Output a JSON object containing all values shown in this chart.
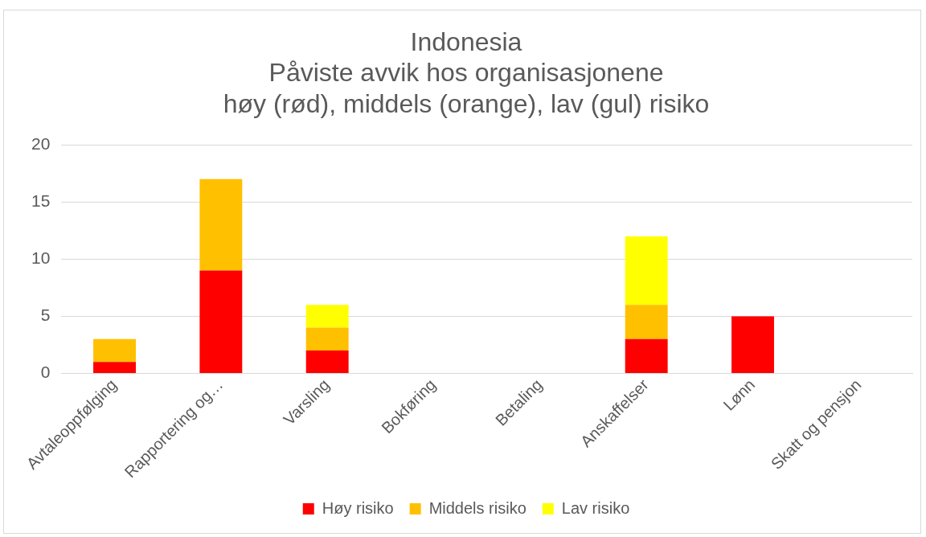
{
  "chart_data": {
    "type": "bar",
    "title": "Indonesia\nPåviste avvik hos organisasjonene\nhøy (rød), middels (orange), lav (gul) risiko",
    "categories": [
      "Avtaleoppfølging",
      "Rapportering og…",
      "Varsling",
      "Bokføring",
      "Betaling",
      "Anskaffelser",
      "Lønn",
      "Skatt og pensjon"
    ],
    "stacked": true,
    "series": [
      {
        "name": "Høy risiko",
        "color": "#ff0000",
        "values": [
          1,
          9,
          2,
          0,
          0,
          3,
          5,
          0
        ]
      },
      {
        "name": "Middels risiko",
        "color": "#ffc000",
        "values": [
          2,
          8,
          2,
          0,
          0,
          3,
          0,
          0
        ]
      },
      {
        "name": "Lav risiko",
        "color": "#ffff00",
        "values": [
          0,
          0,
          2,
          0,
          0,
          6,
          0,
          0
        ]
      }
    ],
    "ylim": [
      0,
      20
    ],
    "yticks": [
      0,
      5,
      10,
      15,
      20
    ],
    "grid": "y",
    "legend": "bottom"
  }
}
